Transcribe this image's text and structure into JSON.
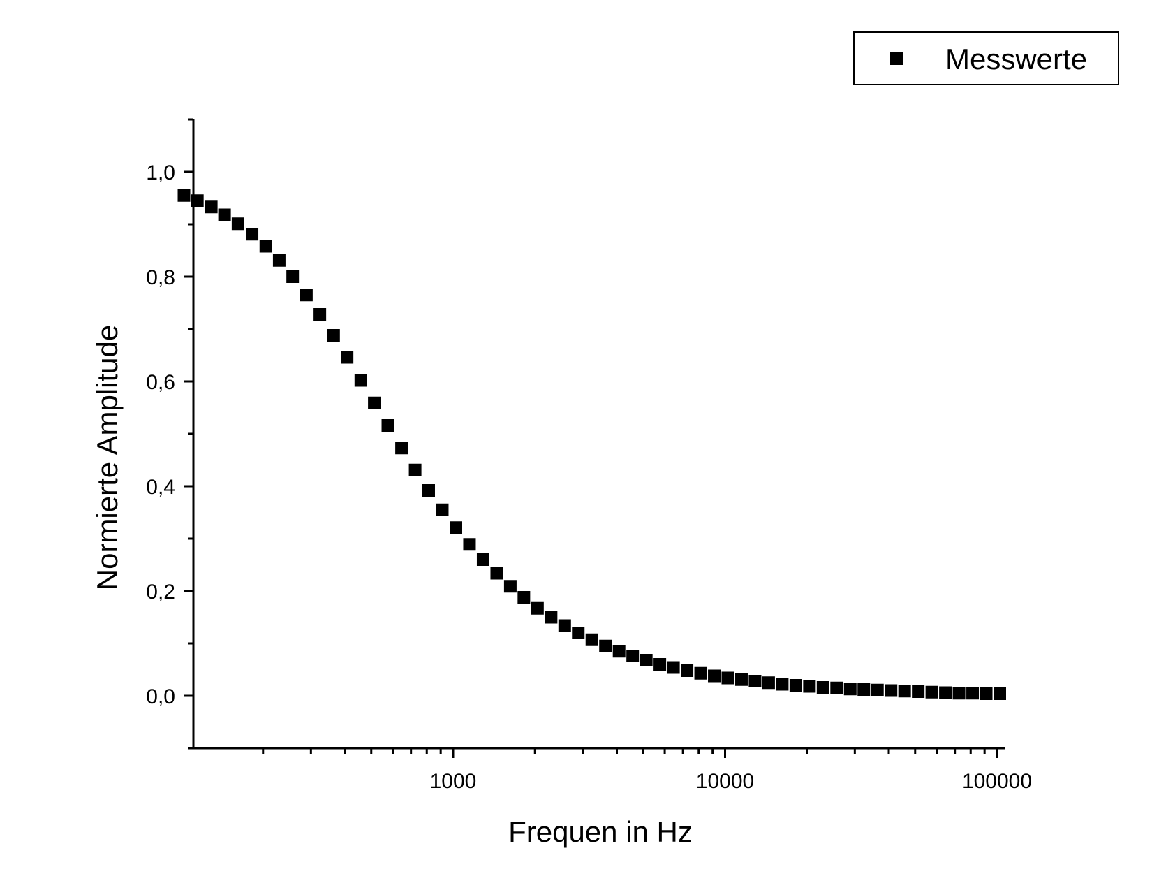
{
  "chart_data": {
    "type": "scatter",
    "title": "",
    "xlabel": "Frequen in Hz",
    "ylabel": "Normierte Amplitude",
    "x_scale": "log",
    "xlim": [
      100,
      100000
    ],
    "ylim": [
      -0.1,
      1.1
    ],
    "x_ticks": [
      {
        "value": 1000,
        "label": "1000"
      },
      {
        "value": 10000,
        "label": "10000"
      },
      {
        "value": 100000,
        "label": "100000"
      }
    ],
    "y_ticks": [
      {
        "value": 0.0,
        "label": "0,0"
      },
      {
        "value": 0.2,
        "label": "0,2"
      },
      {
        "value": 0.4,
        "label": "0,4"
      },
      {
        "value": 0.6,
        "label": "0,6"
      },
      {
        "value": 0.8,
        "label": "0,8"
      },
      {
        "value": 1.0,
        "label": "1,0"
      }
    ],
    "grid": false,
    "legend": {
      "position": "top-right"
    },
    "series": [
      {
        "name": "Messwerte",
        "marker": "square",
        "color": "#000000",
        "x": [
          100,
          112,
          126,
          141,
          158,
          178,
          200,
          224,
          251,
          282,
          316,
          355,
          398,
          447,
          501,
          562,
          631,
          708,
          794,
          891,
          1000,
          1122,
          1259,
          1413,
          1585,
          1778,
          1995,
          2239,
          2512,
          2818,
          3162,
          3548,
          3981,
          4467,
          5012,
          5623,
          6310,
          7079,
          7943,
          8913,
          10000,
          11220,
          12589,
          14125,
          15849,
          17783,
          19953,
          22387,
          25119,
          28184,
          31623,
          35481,
          39811,
          44668,
          50119,
          56234,
          63096,
          70795,
          79433,
          89125,
          100000
        ],
        "y": [
          0.955,
          0.945,
          0.933,
          0.918,
          0.901,
          0.881,
          0.858,
          0.831,
          0.8,
          0.765,
          0.728,
          0.688,
          0.646,
          0.602,
          0.559,
          0.516,
          0.473,
          0.431,
          0.392,
          0.355,
          0.321,
          0.289,
          0.26,
          0.234,
          0.209,
          0.188,
          0.167,
          0.15,
          0.134,
          0.12,
          0.107,
          0.095,
          0.085,
          0.076,
          0.068,
          0.06,
          0.054,
          0.048,
          0.043,
          0.038,
          0.034,
          0.031,
          0.028,
          0.025,
          0.022,
          0.02,
          0.018,
          0.016,
          0.015,
          0.013,
          0.012,
          0.011,
          0.01,
          0.009,
          0.008,
          0.007,
          0.006,
          0.005,
          0.005,
          0.004,
          0.004
        ]
      }
    ]
  }
}
